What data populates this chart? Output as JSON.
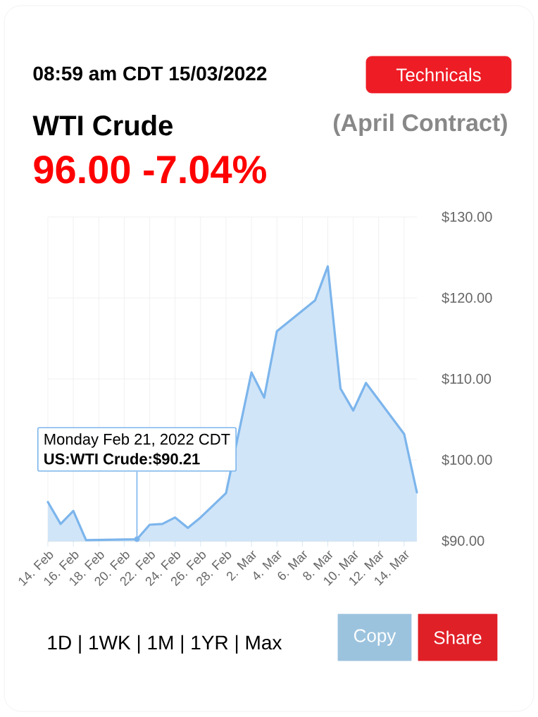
{
  "chart_data": {
    "type": "area",
    "title": "WTI Crude",
    "subtitle": "(April Contract)",
    "x": [
      "2022-02-14",
      "2022-02-15",
      "2022-02-16",
      "2022-02-17",
      "2022-02-21",
      "2022-02-22",
      "2022-02-23",
      "2022-02-24",
      "2022-02-25",
      "2022-02-26",
      "2022-02-28",
      "2022-03-02",
      "2022-03-03",
      "2022-03-04",
      "2022-03-07",
      "2022-03-08",
      "2022-03-09",
      "2022-03-10",
      "2022-03-11",
      "2022-03-14",
      "2022-03-15"
    ],
    "series": [
      {
        "color": "#7cb5ec",
        "values": [
          94.8,
          92.1,
          93.7,
          90.1,
          90.21,
          92.0,
          92.1,
          92.9,
          91.6,
          92.9,
          95.9,
          110.8,
          107.7,
          115.9,
          119.7,
          123.9,
          108.8,
          106.1,
          109.5,
          103.2,
          96.0
        ]
      }
    ],
    "xlim": [
      "2022-02-14",
      "2022-03-15"
    ],
    "xticks": [
      {
        "value": "2022-02-14",
        "label": "14. Feb"
      },
      {
        "value": "2022-02-16",
        "label": "16. Feb"
      },
      {
        "value": "2022-02-18",
        "label": "18. Feb"
      },
      {
        "value": "2022-02-20",
        "label": "20. Feb"
      },
      {
        "value": "2022-02-22",
        "label": "22. Feb"
      },
      {
        "value": "2022-02-24",
        "label": "24. Feb"
      },
      {
        "value": "2022-02-26",
        "label": "26. Feb"
      },
      {
        "value": "2022-02-28",
        "label": "28. Feb"
      },
      {
        "value": "2022-03-02",
        "label": "2. Mar"
      },
      {
        "value": "2022-03-04",
        "label": "4. Mar"
      },
      {
        "value": "2022-03-06",
        "label": "6. Mar"
      },
      {
        "value": "2022-03-08",
        "label": "8. Mar"
      },
      {
        "value": "2022-03-10",
        "label": "10. Mar"
      },
      {
        "value": "2022-03-12",
        "label": "12. Mar"
      },
      {
        "value": "2022-03-14",
        "label": "14. Mar"
      }
    ],
    "ylim": [
      90,
      130
    ],
    "yticks": [
      {
        "value": 90,
        "label": "$90.00"
      },
      {
        "value": 100,
        "label": "$100.00"
      },
      {
        "value": 110,
        "label": "$110.00"
      },
      {
        "value": 120,
        "label": "$120.00"
      },
      {
        "value": 130,
        "label": "$130.00"
      }
    ],
    "grid": true,
    "annotations": [
      "08:59 am CDT 15/03/2022",
      "Technicals",
      "96.00 -7.04%",
      "1D | 1WK | 1M | 1YR | Max",
      "Copy",
      "Share",
      "Monday Feb 21, 2022 CDT",
      {
        "text": "US:WTI Crude:$90.21",
        "x": "2022-02-21",
        "y": 90.21
      }
    ]
  }
}
